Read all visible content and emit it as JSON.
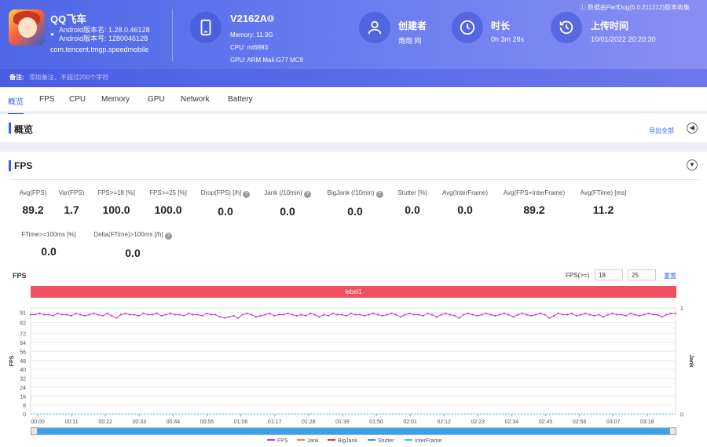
{
  "app": {
    "name": "QQ飞车",
    "version_name": "Android版本名: 1.28.0.46128",
    "version_code": "Android版本号: 1280046128",
    "package": "com.tencent.tmgp.speedmobile"
  },
  "device": {
    "model": "V2162A",
    "memory": "Memory: 11.3G",
    "cpu": "CPU: mt6893",
    "gpu": "GPU: ARM Mali-G77 MC9"
  },
  "creator": {
    "title": "创建者",
    "value": "炮炮 网"
  },
  "duration": {
    "title": "时长",
    "value": "0h 3m 28s"
  },
  "upload": {
    "title": "上传时间",
    "value": "10/01/2022 20:20:30"
  },
  "collect_note": "数据由PerfDog(6.0.211212)版本收集",
  "remark": {
    "label": "备注:",
    "placeholder": "添加备注，不超过200个字符"
  },
  "tabs": [
    "概览",
    "FPS",
    "CPU",
    "Memory",
    "GPU",
    "Network",
    "Battery"
  ],
  "overview": {
    "title": "概览",
    "export": "导出全部"
  },
  "fps_section": {
    "title": "FPS",
    "metrics": [
      {
        "label": "Avg(FPS)",
        "value": "89.2"
      },
      {
        "label": "Var(FPS)",
        "value": "1.7"
      },
      {
        "label": "FPS>=18 [%]",
        "value": "100.0"
      },
      {
        "label": "FPS>=25 [%]",
        "value": "100.0"
      },
      {
        "label": "Drop(FPS) [/h]",
        "value": "0.0"
      },
      {
        "label": "Jank (/10min)",
        "value": "0.0"
      },
      {
        "label": "BigJank (/10min)",
        "value": "0.0"
      },
      {
        "label": "Stutter [%]",
        "value": "0.0"
      },
      {
        "label": "Avg(InterFrame)",
        "value": "0.0"
      },
      {
        "label": "Avg(FPS+InterFrame)",
        "value": "89.2"
      },
      {
        "label": "Avg(FTime) [ms]",
        "value": "11.2"
      },
      {
        "label": "FTime>=100ms [%]",
        "value": "0.0"
      },
      {
        "label": "Delta(FTime)>100ms [/h]",
        "value": "0.0"
      }
    ],
    "chart_title": "FPS",
    "threshold_label": "FPS(>=)",
    "threshold_low": "18",
    "threshold_high": "25",
    "reset": "重置",
    "label_banner": "label1"
  },
  "chart_data": {
    "type": "line",
    "ylabel": "FPS",
    "y2label": "Jank",
    "ylim": [
      0,
      91
    ],
    "yticks": [
      0,
      8,
      16,
      24,
      32,
      40,
      48,
      56,
      64,
      72,
      82,
      91
    ],
    "y2ticks": [
      0,
      1
    ],
    "x_ticks": [
      "00:00",
      "00:11",
      "00:22",
      "00:33",
      "00:44",
      "00:55",
      "01:06",
      "01:17",
      "01:28",
      "01:39",
      "01:50",
      "02:01",
      "02:12",
      "02:23",
      "02:34",
      "02:45",
      "02:56",
      "03:07",
      "03:18"
    ],
    "series": [
      {
        "name": "FPS",
        "color": "#c83cc8",
        "values": [
          89,
          89,
          90,
          89,
          89,
          88,
          90,
          89,
          89,
          88,
          90,
          89,
          88,
          89,
          90,
          89,
          88,
          90,
          88,
          86,
          89,
          90,
          89,
          89,
          88,
          90,
          89,
          89,
          90,
          88,
          89,
          90,
          89,
          89,
          88,
          90,
          89,
          89,
          88,
          90,
          89,
          89,
          87,
          86,
          87,
          88,
          86,
          89,
          90,
          89,
          87,
          88,
          89,
          90,
          88,
          89,
          89,
          90,
          89,
          88,
          89,
          88,
          90,
          89,
          87,
          89,
          88,
          90,
          89,
          89,
          88,
          90,
          89,
          89,
          88,
          89,
          90,
          89,
          88,
          89,
          90,
          89,
          87,
          89,
          90,
          89,
          89,
          88,
          90,
          89,
          87,
          89,
          90,
          89,
          88,
          86,
          89,
          90,
          89,
          88,
          89,
          90,
          89,
          88,
          89,
          90,
          89,
          87,
          89,
          90,
          89,
          88,
          89,
          90,
          89,
          86,
          88,
          90,
          89,
          89,
          90,
          88,
          89,
          90,
          89,
          88,
          89,
          87,
          89,
          90,
          89,
          89,
          88,
          90,
          89,
          88,
          89,
          90,
          89,
          89,
          87,
          89,
          90,
          90
        ]
      },
      {
        "name": "Jank",
        "color": "#f0882a",
        "values": [
          0
        ]
      },
      {
        "name": "BigJank",
        "color": "#e8303a",
        "values": [
          0
        ]
      },
      {
        "name": "Stutter",
        "color": "#3a8ee8",
        "values": [
          0
        ]
      },
      {
        "name": "InterFrame",
        "color": "#3ac8d8",
        "values": [
          0
        ]
      }
    ]
  }
}
